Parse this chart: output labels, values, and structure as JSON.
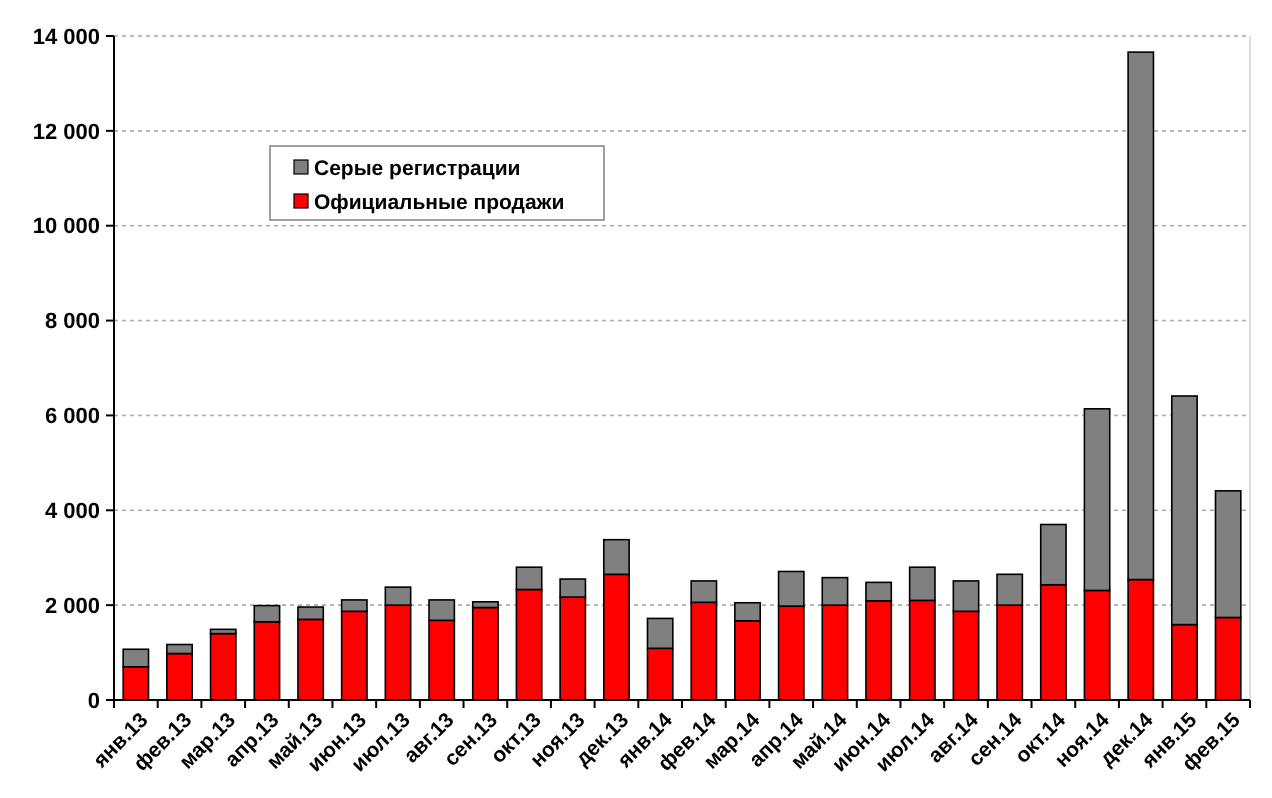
{
  "chart_data": {
    "type": "bar",
    "stacked": true,
    "categories": [
      "янв.13",
      "фев.13",
      "мар.13",
      "апр.13",
      "май.13",
      "июн.13",
      "июл.13",
      "авг.13",
      "сен.13",
      "окт.13",
      "ноя.13",
      "дек.13",
      "янв.14",
      "фев.14",
      "мар.14",
      "апр.14",
      "май.14",
      "июн.14",
      "июл.14",
      "авг.14",
      "сен.14",
      "окт.14",
      "ноя.14",
      "дек.14",
      "янв.15",
      "фев.15"
    ],
    "series": [
      {
        "name": "Официальные продажи",
        "color": "#ff0000",
        "values": [
          700,
          980,
          1400,
          1650,
          1700,
          1870,
          2000,
          1680,
          1950,
          2330,
          2170,
          2650,
          1090,
          2060,
          1670,
          1980,
          2000,
          2090,
          2100,
          1870,
          2000,
          2430,
          2310,
          2540,
          1590,
          1740
        ]
      },
      {
        "name": "Серые регистрации",
        "color": "#808080",
        "values": [
          370,
          190,
          90,
          340,
          260,
          240,
          380,
          430,
          120,
          470,
          380,
          730,
          630,
          450,
          380,
          730,
          580,
          390,
          700,
          640,
          650,
          1270,
          3830,
          11120,
          4820,
          2670
        ]
      }
    ],
    "ylim": [
      0,
      14000
    ],
    "yticks": [
      {
        "value": 0,
        "label": "0"
      },
      {
        "value": 2000,
        "label": "2 000"
      },
      {
        "value": 4000,
        "label": "4 000"
      },
      {
        "value": 6000,
        "label": "6 000"
      },
      {
        "value": 8000,
        "label": "8 000"
      },
      {
        "value": 10000,
        "label": "10 000"
      },
      {
        "value": 12000,
        "label": "12 000"
      },
      {
        "value": 14000,
        "label": "14 000"
      }
    ],
    "grid": "y",
    "legend": "top left"
  }
}
